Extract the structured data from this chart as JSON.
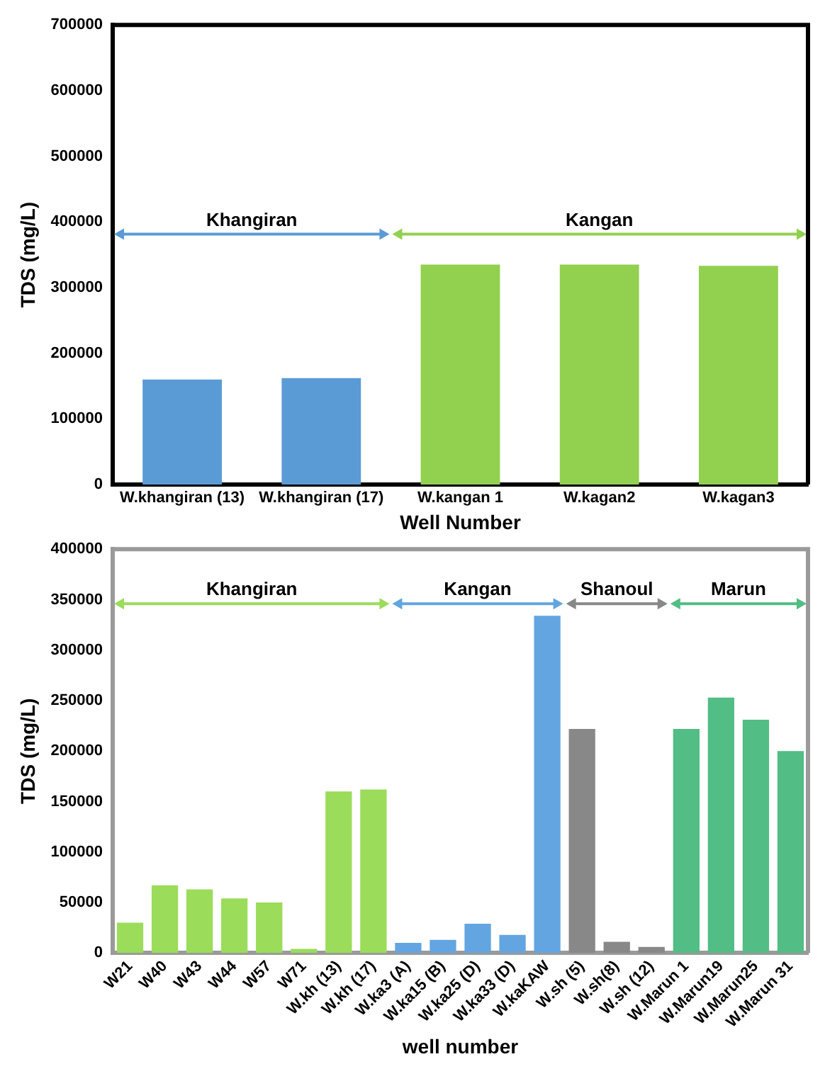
{
  "chart_data": [
    {
      "type": "bar",
      "xlabel": "Well Number",
      "ylabel": "TDS (mg/L)",
      "categories": [
        "W.khangiran (13)",
        "W.khangiran (17)",
        "W.kangan 1",
        "W.kagan2",
        "W.kagan3"
      ],
      "values": [
        160000,
        162000,
        335000,
        335000,
        333000
      ],
      "colors": [
        "#5b9bd5",
        "#5b9bd5",
        "#92d050",
        "#92d050",
        "#92d050"
      ],
      "ylim": [
        0,
        700000
      ],
      "yticks": [
        0,
        100000,
        200000,
        300000,
        400000,
        500000,
        600000,
        700000
      ],
      "annotations": [
        "Khangiran",
        "Kangan"
      ]
    },
    {
      "type": "bar",
      "xlabel": "well number",
      "ylabel": "TDS (mg/L)",
      "categories": [
        "W21",
        "W40",
        "W43",
        "W44",
        "W57",
        "W71",
        "W.kh (13)",
        "W.kh (17)",
        "W.ka3 (A)",
        "W.ka15 (B)",
        "W.ka25 (D)",
        "W.ka33 (D)",
        "W.kaKAW",
        "W.sh (5)",
        "W.sh(8)",
        "W.sh (12)",
        "W.Marun 1",
        "W.Marun19",
        "W.Marun25",
        "W.Marun 31"
      ],
      "values": [
        30000,
        67000,
        63000,
        54000,
        50000,
        4000,
        160000,
        162000,
        10000,
        13000,
        29000,
        18000,
        334000,
        222000,
        11000,
        6000,
        222000,
        253000,
        231000,
        200000
      ],
      "colors": [
        "#9bdc5a",
        "#9bdc5a",
        "#9bdc5a",
        "#9bdc5a",
        "#9bdc5a",
        "#9bdc5a",
        "#9bdc5a",
        "#9bdc5a",
        "#63a5e0",
        "#63a5e0",
        "#63a5e0",
        "#63a5e0",
        "#63a5e0",
        "#888888",
        "#888888",
        "#888888",
        "#52bd84",
        "#52bd84",
        "#52bd84",
        "#52bd84"
      ],
      "ylim": [
        0,
        400000
      ],
      "yticks": [
        0,
        50000,
        100000,
        150000,
        200000,
        250000,
        300000,
        350000,
        400000
      ],
      "annotations": [
        "Khangiran",
        "Kangan",
        "Shanoul",
        "Marun"
      ]
    }
  ]
}
